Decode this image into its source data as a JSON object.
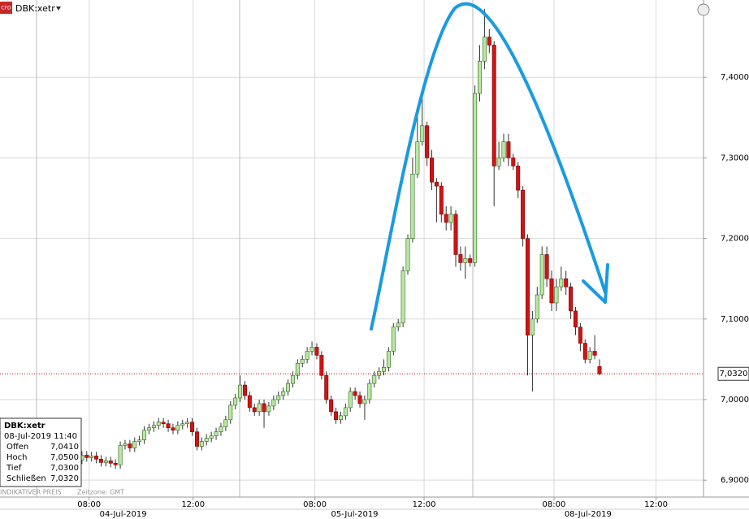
{
  "chart_data": {
    "type": "candlestick",
    "title": "DBK:xetr",
    "series": [
      {
        "up_color": "#b9e6a3",
        "down_color": "#cf1414",
        "open": [
          6.925,
          6.931,
          6.928,
          6.93,
          6.926,
          6.922,
          6.924,
          6.921,
          6.919,
          6.943,
          6.945,
          6.94,
          6.948,
          6.95,
          6.962,
          6.965,
          6.968,
          6.972,
          6.97,
          6.965,
          6.962,
          6.968,
          6.97,
          6.972,
          6.96,
          6.942,
          6.948,
          6.952,
          6.955,
          6.96,
          6.966,
          6.975,
          6.993,
          7.002,
          7.018,
          7.005,
          6.99,
          6.985,
          6.995,
          6.985,
          6.992,
          7.0,
          7.005,
          7.01,
          7.02,
          7.03,
          7.045,
          7.05,
          7.06,
          7.065,
          7.055,
          7.03,
          7.0,
          6.985,
          6.975,
          6.98,
          6.99,
          7.01,
          7.005,
          6.995,
          7.0,
          7.02,
          7.03,
          7.035,
          7.04,
          7.06,
          7.09,
          7.095,
          7.16,
          7.2,
          7.28,
          7.32,
          7.34,
          7.3,
          7.27,
          7.265,
          7.23,
          7.22,
          7.23,
          7.18,
          7.17,
          7.175,
          7.17,
          7.38,
          7.42,
          7.45,
          7.44,
          7.29,
          7.3,
          7.32,
          7.3,
          7.29,
          7.26,
          7.2,
          7.08,
          7.1,
          7.13,
          7.18,
          7.15,
          7.12,
          7.14,
          7.15,
          7.14,
          7.11,
          7.09,
          7.07,
          7.05,
          7.06,
          7.041
        ],
        "high": [
          6.936,
          6.936,
          6.935,
          6.935,
          6.931,
          6.929,
          6.929,
          6.926,
          6.948,
          6.95,
          6.95,
          6.953,
          6.955,
          6.967,
          6.97,
          6.973,
          6.977,
          6.977,
          6.975,
          6.97,
          6.973,
          6.975,
          6.977,
          6.977,
          6.965,
          6.953,
          6.957,
          6.96,
          6.965,
          6.971,
          6.98,
          6.998,
          7.007,
          7.03,
          7.023,
          7.01,
          6.995,
          7.0,
          7.0,
          6.997,
          7.005,
          7.01,
          7.015,
          7.025,
          7.035,
          7.05,
          7.055,
          7.065,
          7.072,
          7.07,
          7.06,
          7.035,
          7.005,
          6.99,
          6.985,
          6.995,
          7.015,
          7.015,
          7.01,
          7.005,
          7.025,
          7.035,
          7.04,
          7.05,
          7.065,
          7.095,
          7.1,
          7.165,
          7.205,
          7.3,
          7.36,
          7.375,
          7.345,
          7.31,
          7.275,
          7.27,
          7.24,
          7.24,
          7.235,
          7.19,
          7.19,
          7.18,
          7.39,
          7.44,
          7.485,
          7.46,
          7.445,
          7.32,
          7.33,
          7.33,
          7.305,
          7.295,
          7.265,
          7.205,
          7.11,
          7.14,
          7.19,
          7.19,
          7.16,
          7.15,
          7.165,
          7.16,
          7.145,
          7.115,
          7.095,
          7.075,
          7.065,
          7.08,
          7.05
        ],
        "low": [
          6.92,
          6.923,
          6.923,
          6.921,
          6.917,
          6.917,
          6.916,
          6.914,
          6.914,
          6.938,
          6.935,
          6.935,
          6.943,
          6.945,
          6.957,
          6.96,
          6.963,
          6.965,
          6.96,
          6.957,
          6.957,
          6.963,
          6.965,
          6.955,
          6.937,
          6.937,
          6.943,
          6.947,
          6.95,
          6.955,
          6.961,
          6.97,
          6.988,
          6.997,
          7.0,
          6.985,
          6.98,
          6.98,
          6.965,
          6.98,
          6.987,
          6.995,
          7.0,
          7.005,
          7.015,
          7.025,
          7.04,
          7.045,
          7.055,
          7.05,
          7.025,
          6.995,
          6.98,
          6.97,
          6.97,
          6.975,
          6.985,
          7.0,
          6.99,
          6.975,
          6.995,
          7.015,
          7.025,
          7.03,
          7.035,
          7.055,
          7.085,
          7.09,
          7.155,
          7.195,
          7.275,
          7.315,
          7.29,
          7.26,
          7.22,
          7.22,
          7.21,
          7.21,
          7.165,
          7.16,
          7.15,
          7.165,
          7.165,
          7.37,
          7.41,
          7.43,
          7.24,
          7.285,
          7.295,
          7.29,
          7.285,
          7.25,
          7.19,
          7.03,
          7.01,
          7.095,
          7.125,
          7.14,
          7.11,
          7.11,
          7.135,
          7.13,
          7.1,
          7.08,
          7.06,
          7.045,
          7.045,
          7.05,
          7.03
        ],
        "close": [
          6.931,
          6.928,
          6.93,
          6.926,
          6.922,
          6.924,
          6.921,
          6.919,
          6.943,
          6.945,
          6.94,
          6.948,
          6.95,
          6.962,
          6.965,
          6.968,
          6.972,
          6.97,
          6.965,
          6.962,
          6.968,
          6.97,
          6.972,
          6.96,
          6.942,
          6.948,
          6.952,
          6.955,
          6.96,
          6.966,
          6.975,
          6.993,
          7.002,
          7.018,
          7.005,
          6.99,
          6.985,
          6.995,
          6.985,
          6.992,
          7.0,
          7.005,
          7.01,
          7.02,
          7.03,
          7.045,
          7.05,
          7.06,
          7.065,
          7.055,
          7.03,
          7.0,
          6.985,
          6.975,
          6.98,
          6.99,
          7.01,
          7.005,
          6.995,
          7.0,
          7.02,
          7.03,
          7.035,
          7.04,
          7.06,
          7.09,
          7.095,
          7.16,
          7.2,
          7.28,
          7.32,
          7.34,
          7.3,
          7.27,
          7.265,
          7.23,
          7.22,
          7.23,
          7.18,
          7.17,
          7.175,
          7.17,
          7.38,
          7.42,
          7.45,
          7.44,
          7.29,
          7.3,
          7.32,
          7.3,
          7.29,
          7.26,
          7.2,
          7.08,
          7.1,
          7.13,
          7.18,
          7.15,
          7.12,
          7.14,
          7.15,
          7.14,
          7.11,
          7.09,
          7.07,
          7.05,
          7.06,
          7.055,
          7.032
        ]
      }
    ],
    "xlim": [
      -17.1,
      129.7
    ],
    "xticks": [
      {
        "value": 1.5,
        "label": "08:00"
      },
      {
        "value": 23.2,
        "label": "12:00"
      },
      {
        "value": 48.6,
        "label": "08:00"
      },
      {
        "value": 71.4,
        "label": "12:00"
      },
      {
        "value": 98.5,
        "label": "08:00"
      },
      {
        "value": 119.8,
        "label": "12:00"
      }
    ],
    "date_ticks": [
      {
        "value": 8.6,
        "label": "04-Jul-2019"
      },
      {
        "value": 56.9,
        "label": "05-Jul-2019"
      },
      {
        "value": 105.6,
        "label": "08-Jul-2019"
      }
    ],
    "ylim": [
      6.879,
      7.496
    ],
    "yticks": [
      {
        "value": 6.9,
        "label": "6,9000"
      },
      {
        "value": 7.0,
        "label": "7,0000"
      },
      {
        "value": 7.1,
        "label": "7,1000"
      },
      {
        "value": 7.2,
        "label": "7,2000"
      },
      {
        "value": 7.3,
        "label": "7,3000"
      },
      {
        "value": 7.4,
        "label": "7,4000"
      }
    ],
    "grid": true,
    "last_price": {
      "value": 7.032,
      "label": "7,0320",
      "color": "#cc0000"
    },
    "info": {
      "title": "DBK:xetr",
      "time": "08-Jul-2019 11:40",
      "rows": [
        {
          "label": "Offen",
          "value": "7,0410"
        },
        {
          "label": "Hoch",
          "value": "7,0500"
        },
        {
          "label": "Tief",
          "value": "7,0300"
        },
        {
          "label": "Schließen",
          "value": "7,0320"
        }
      ]
    },
    "footer": {
      "price_note": "INDIKATIVER PREIS",
      "timezone": "Zeitzone: GMT"
    },
    "badge": "CFD"
  }
}
